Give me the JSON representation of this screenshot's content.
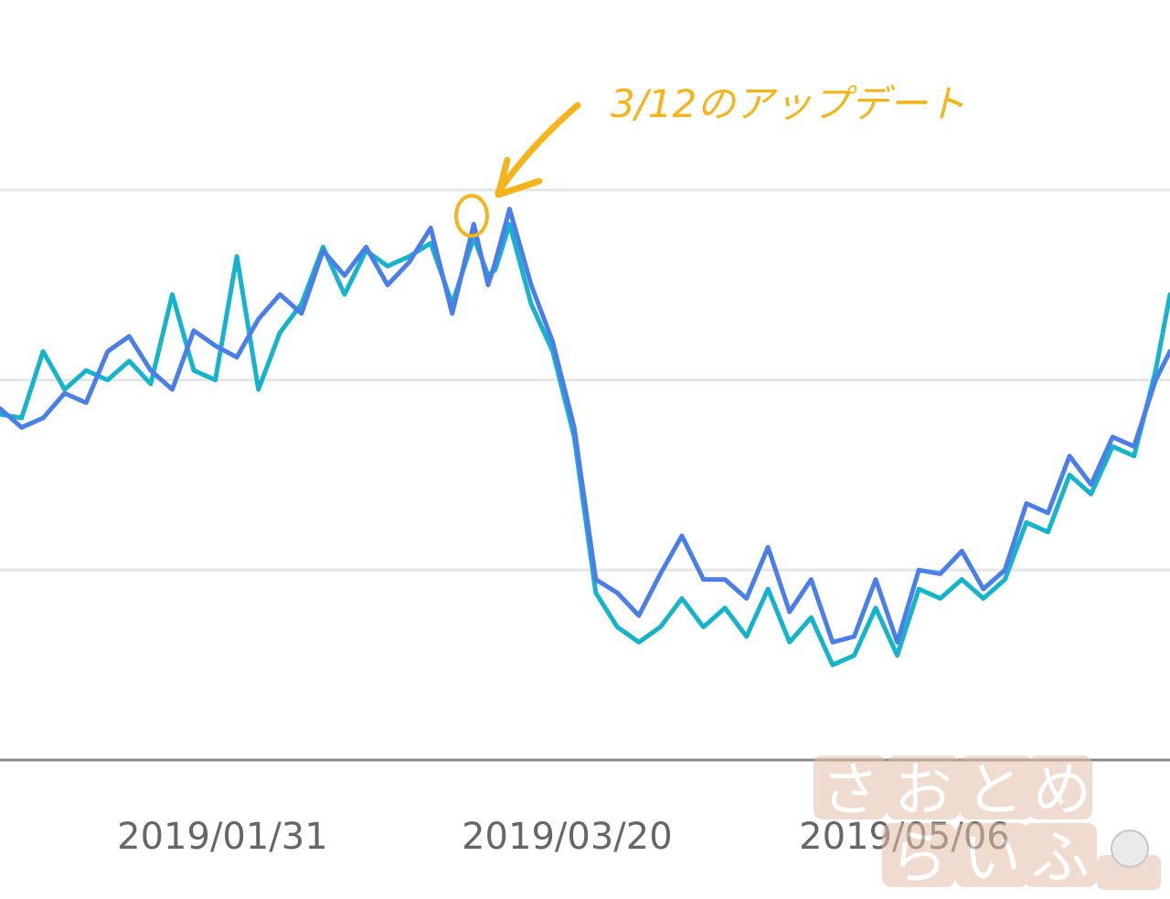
{
  "chart_data": {
    "type": "line",
    "title": "",
    "xlabel": "",
    "ylabel": "",
    "x_range": [
      "2018-12-31",
      "2019-06-12"
    ],
    "x_tick_labels": [
      "2019/01/31",
      "2019/03/20",
      "2019/05/06"
    ],
    "x_ticks": [
      "2019-01-31",
      "2019-03-20",
      "2019-05-06"
    ],
    "ylim": [
      0,
      4
    ],
    "gridlines_y": [
      1,
      2,
      3
    ],
    "y_tick_labels": "none shown",
    "grid": true,
    "legend": "none",
    "colors": {
      "series_a": "#4a7ee8",
      "series_b": "#16b4cc",
      "annotation": "#f4b41a",
      "grid": "#e6e6e6",
      "axis": "#888888"
    },
    "series": [
      {
        "color": "#4a7ee8",
        "x": [
          "2018-12-31",
          "2019-01-03",
          "2019-01-06",
          "2019-01-09",
          "2019-01-12",
          "2019-01-15",
          "2019-01-18",
          "2019-01-21",
          "2019-01-24",
          "2019-01-27",
          "2019-01-30",
          "2019-02-02",
          "2019-02-05",
          "2019-02-08",
          "2019-02-11",
          "2019-02-14",
          "2019-02-17",
          "2019-02-20",
          "2019-02-23",
          "2019-02-26",
          "2019-03-01",
          "2019-03-04",
          "2019-03-07",
          "2019-03-09",
          "2019-03-10",
          "2019-03-12",
          "2019-03-15",
          "2019-03-18",
          "2019-03-21",
          "2019-03-24",
          "2019-03-27",
          "2019-03-30",
          "2019-04-02",
          "2019-04-05",
          "2019-04-08",
          "2019-04-11",
          "2019-04-14",
          "2019-04-17",
          "2019-04-20",
          "2019-04-23",
          "2019-04-26",
          "2019-04-29",
          "2019-05-02",
          "2019-05-05",
          "2019-05-08",
          "2019-05-11",
          "2019-05-14",
          "2019-05-17",
          "2019-05-20",
          "2019-05-23",
          "2019-05-26",
          "2019-05-29",
          "2019-06-01",
          "2019-06-04",
          "2019-06-07",
          "2019-06-10",
          "2019-06-12"
        ],
        "y": [
          1.85,
          1.75,
          1.8,
          1.93,
          1.88,
          2.15,
          2.23,
          2.05,
          1.95,
          2.26,
          2.18,
          2.12,
          2.32,
          2.45,
          2.35,
          2.68,
          2.55,
          2.7,
          2.5,
          2.62,
          2.8,
          2.35,
          2.82,
          2.5,
          2.62,
          2.9,
          2.5,
          2.2,
          1.75,
          0.95,
          0.88,
          0.76,
          0.98,
          1.18,
          0.95,
          0.95,
          0.85,
          1.12,
          0.78,
          0.95,
          0.62,
          0.65,
          0.95,
          0.62,
          1.0,
          0.98,
          1.1,
          0.9,
          1.0,
          1.35,
          1.3,
          1.6,
          1.45,
          1.7,
          1.65,
          2.0,
          2.15
        ]
      },
      {
        "color": "#16b4cc",
        "x": [
          "2018-12-31",
          "2019-01-03",
          "2019-01-06",
          "2019-01-09",
          "2019-01-12",
          "2019-01-15",
          "2019-01-18",
          "2019-01-21",
          "2019-01-24",
          "2019-01-27",
          "2019-01-30",
          "2019-02-02",
          "2019-02-05",
          "2019-02-08",
          "2019-02-11",
          "2019-02-14",
          "2019-02-17",
          "2019-02-20",
          "2019-02-23",
          "2019-02-26",
          "2019-03-01",
          "2019-03-04",
          "2019-03-07",
          "2019-03-09",
          "2019-03-10",
          "2019-03-12",
          "2019-03-15",
          "2019-03-18",
          "2019-03-21",
          "2019-03-24",
          "2019-03-27",
          "2019-03-30",
          "2019-04-02",
          "2019-04-05",
          "2019-04-08",
          "2019-04-11",
          "2019-04-14",
          "2019-04-17",
          "2019-04-20",
          "2019-04-23",
          "2019-04-26",
          "2019-04-29",
          "2019-05-02",
          "2019-05-05",
          "2019-05-08",
          "2019-05-11",
          "2019-05-14",
          "2019-05-17",
          "2019-05-20",
          "2019-05-23",
          "2019-05-26",
          "2019-05-29",
          "2019-06-01",
          "2019-06-04",
          "2019-06-07",
          "2019-06-10",
          "2019-06-12"
        ],
        "y": [
          1.82,
          1.8,
          2.15,
          1.95,
          2.05,
          2.0,
          2.1,
          1.98,
          2.45,
          2.05,
          2.0,
          2.65,
          1.95,
          2.25,
          2.4,
          2.7,
          2.45,
          2.68,
          2.6,
          2.65,
          2.72,
          2.4,
          2.75,
          2.55,
          2.58,
          2.82,
          2.4,
          2.15,
          1.7,
          0.88,
          0.7,
          0.62,
          0.7,
          0.85,
          0.7,
          0.8,
          0.65,
          0.9,
          0.62,
          0.75,
          0.5,
          0.55,
          0.8,
          0.55,
          0.9,
          0.85,
          0.95,
          0.85,
          0.95,
          1.25,
          1.2,
          1.5,
          1.4,
          1.65,
          1.6,
          2.05,
          2.45
        ]
      }
    ],
    "annotation": {
      "text": "3/12のアップデート",
      "date": "2019-03-12"
    }
  },
  "watermark": [
    "さ",
    "お",
    "と",
    "め",
    "ら",
    "い",
    "ふ"
  ]
}
